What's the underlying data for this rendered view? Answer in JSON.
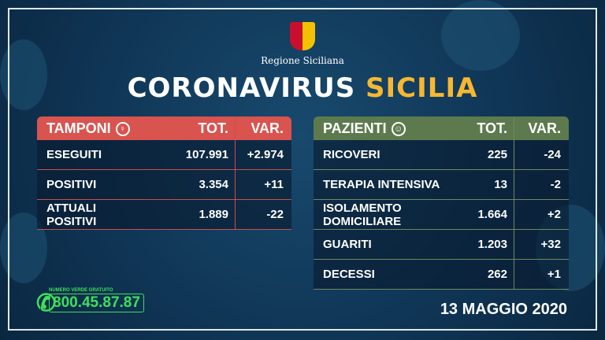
{
  "header": {
    "region": "Regione Siciliana",
    "title_a": "CORONAVIRUS",
    "title_b": "SICILIA"
  },
  "tamponi": {
    "title": "TAMPONI",
    "icon": "swab-icon",
    "tot": "TOT.",
    "var": "VAR.",
    "rows": [
      {
        "label": "ESEGUITI",
        "tot": "107.991",
        "var": "+2.974"
      },
      {
        "label": "POSITIVI",
        "tot": "3.354",
        "var": "+11"
      },
      {
        "label": "ATTUALI POSITIVI",
        "tot": "1.889",
        "var": "-22"
      }
    ]
  },
  "pazienti": {
    "title": "PAZIENTI",
    "icon": "patient-icon",
    "tot": "TOT.",
    "var": "VAR.",
    "rows": [
      {
        "label": "RICOVERI",
        "tot": "225",
        "var": "-24"
      },
      {
        "label": "TERAPIA INTENSIVA",
        "tot": "13",
        "var": "-2"
      },
      {
        "label": "ISOLAMENTO DOMICILIARE",
        "tot": "1.664",
        "var": "+2"
      },
      {
        "label": "GUARITI",
        "tot": "1.203",
        "var": "+32"
      },
      {
        "label": "DECESSI",
        "tot": "262",
        "var": "+1"
      }
    ]
  },
  "phone": {
    "label": "NUMERO VERDE GRATUITO",
    "number": "800.45.87.87"
  },
  "date": "13 MAGGIO 2020",
  "colors": {
    "tamponi": "#d9534f",
    "pazienti": "#5d7a4e",
    "accent": "#f7b731",
    "phone": "#3ee05a"
  }
}
